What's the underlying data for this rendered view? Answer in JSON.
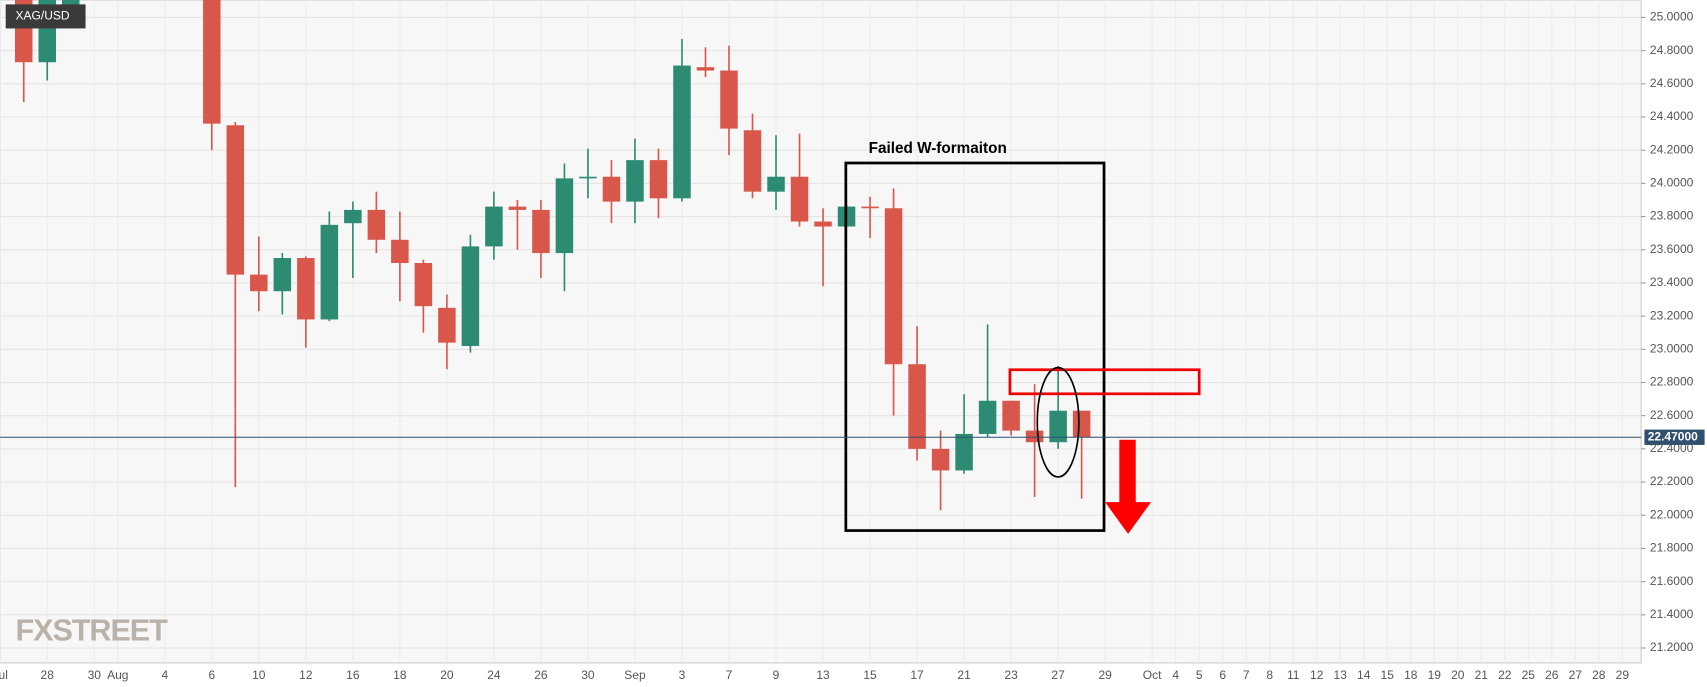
{
  "chart_data": {
    "type": "candlestick",
    "symbol": "XAG/USD",
    "watermark": "FXSTREET",
    "annotation": "Failed W-formaiton",
    "categories": [
      "Jul",
      null,
      "28",
      null,
      "30",
      "Aug",
      null,
      "4",
      null,
      "6",
      null,
      "10",
      null,
      "12",
      null,
      "16",
      null,
      "18",
      null,
      "20",
      null,
      "24",
      null,
      "26",
      null,
      "30",
      null,
      "Sep",
      null,
      "3",
      null,
      "7",
      null,
      "9",
      null,
      "13",
      null,
      "15",
      null,
      "17",
      null,
      "21",
      null,
      "23",
      null,
      "27",
      null,
      "29",
      null,
      "Oct",
      "4",
      "5",
      "6",
      "7",
      "8",
      "11",
      "12",
      "13",
      "14",
      "15",
      "18",
      "19",
      "20",
      "21",
      "22",
      "25",
      "26",
      "27",
      "28",
      "29"
    ],
    "open": [
      null,
      25.2,
      24.73,
      25.0,
      null,
      null,
      null,
      null,
      null,
      25.4,
      24.35,
      23.45,
      23.35,
      23.55,
      23.18,
      23.76,
      23.84,
      23.66,
      23.52,
      23.25,
      23.02,
      23.62,
      23.86,
      23.84,
      23.58,
      24.03,
      24.04,
      23.89,
      24.14,
      23.91,
      24.7,
      24.68,
      24.32,
      23.95,
      24.04,
      23.77,
      23.74,
      23.86,
      23.85,
      22.91,
      22.4,
      22.27,
      22.49,
      22.69,
      22.51,
      22.44,
      22.63,
      null,
      null,
      null,
      null,
      null,
      null,
      null,
      null,
      null,
      null,
      null,
      null,
      null,
      null,
      null,
      null,
      null,
      null,
      null,
      null,
      null,
      null,
      null
    ],
    "high": [
      null,
      25.3,
      25.3,
      25.4,
      null,
      null,
      null,
      null,
      null,
      25.5,
      24.37,
      23.68,
      23.58,
      23.56,
      23.83,
      23.89,
      23.95,
      23.83,
      23.54,
      23.33,
      23.69,
      23.95,
      23.9,
      23.9,
      24.12,
      24.21,
      24.14,
      24.27,
      24.21,
      24.87,
      24.82,
      24.83,
      24.42,
      24.29,
      24.3,
      23.85,
      23.87,
      23.92,
      23.97,
      23.14,
      22.51,
      22.73,
      23.15,
      22.69,
      22.79,
      22.9,
      22.63,
      null,
      null,
      null,
      null,
      null,
      null,
      null,
      null,
      null,
      null,
      null,
      null,
      null,
      null,
      null,
      null,
      null,
      null,
      null,
      null,
      null,
      null,
      null
    ],
    "low": [
      null,
      24.49,
      24.62,
      24.95,
      null,
      null,
      null,
      null,
      null,
      24.2,
      22.17,
      23.23,
      23.21,
      23.01,
      23.17,
      23.43,
      23.58,
      23.29,
      23.1,
      22.88,
      22.98,
      23.54,
      23.6,
      23.43,
      23.35,
      23.91,
      23.76,
      23.76,
      23.79,
      23.89,
      24.64,
      24.17,
      23.91,
      23.84,
      23.74,
      23.38,
      23.74,
      23.67,
      22.6,
      22.33,
      22.03,
      22.25,
      22.47,
      22.48,
      22.11,
      22.4,
      22.1,
      null,
      null,
      null,
      null,
      null,
      null,
      null,
      null,
      null,
      null,
      null,
      null,
      null,
      null,
      null,
      null,
      null,
      null,
      null,
      null,
      null,
      null,
      null
    ],
    "close": [
      null,
      24.73,
      25.2,
      25.3,
      null,
      null,
      null,
      null,
      null,
      24.36,
      23.45,
      23.35,
      23.55,
      23.18,
      23.75,
      23.84,
      23.66,
      23.52,
      23.26,
      23.04,
      23.62,
      23.86,
      23.84,
      23.58,
      24.03,
      24.04,
      23.89,
      24.14,
      23.91,
      24.71,
      24.68,
      24.33,
      23.95,
      24.04,
      23.77,
      23.74,
      23.86,
      23.85,
      22.91,
      22.4,
      22.27,
      22.49,
      22.69,
      22.51,
      22.44,
      22.63,
      22.47,
      null,
      null,
      null,
      null,
      null,
      null,
      null,
      null,
      null,
      null,
      null,
      null,
      null,
      null,
      null,
      null,
      null,
      null,
      null,
      null,
      null,
      null,
      null
    ],
    "up_color": "#2e8b73",
    "down_color": "#d9574a",
    "current_price": {
      "value": 22.47,
      "label": "22.47000"
    },
    "ylim": [
      21.11,
      25.105
    ],
    "yticks": [
      {
        "value": 21.2,
        "label": "21.2000"
      },
      {
        "value": 21.4,
        "label": "21.4000"
      },
      {
        "value": 21.6,
        "label": "21.6000"
      },
      {
        "value": 21.8,
        "label": "21.8000"
      },
      {
        "value": 22,
        "label": "22.0000"
      },
      {
        "value": 22.2,
        "label": "22.2000"
      },
      {
        "value": 22.4,
        "label": "22.4000"
      },
      {
        "value": 22.6,
        "label": "22.6000"
      },
      {
        "value": 22.8,
        "label": "22.8000"
      },
      {
        "value": 23,
        "label": "23.0000"
      },
      {
        "value": 23.2,
        "label": "23.2000"
      },
      {
        "value": 23.4,
        "label": "23.4000"
      },
      {
        "value": 23.6,
        "label": "23.6000"
      },
      {
        "value": 23.8,
        "label": "23.8000"
      },
      {
        "value": 24,
        "label": "24.0000"
      },
      {
        "value": 24.2,
        "label": "24.2000"
      },
      {
        "value": 24.4,
        "label": "24.4000"
      },
      {
        "value": 24.6,
        "label": "24.6000"
      },
      {
        "value": 24.8,
        "label": "24.8000"
      },
      {
        "value": 25,
        "label": "25.0000"
      }
    ],
    "grid": true
  }
}
